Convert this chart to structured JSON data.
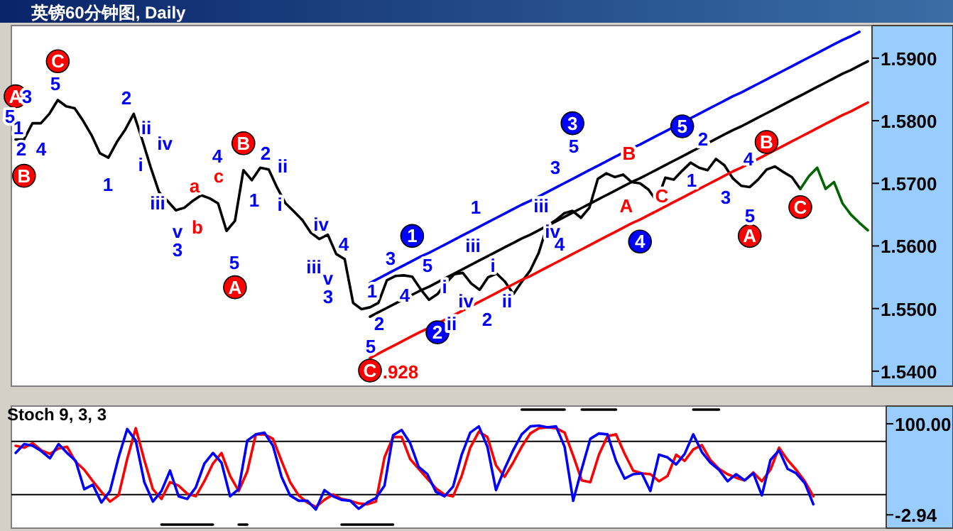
{
  "chart_data": [
    {
      "type": "line",
      "title": "英镑60分钟图, Daily",
      "ylim": [
        1.5376,
        1.5952
      ],
      "tick_labels": "y",
      "grid": false,
      "categories": [
        null,
        null,
        null,
        null,
        null,
        null,
        null,
        null,
        null,
        null,
        null,
        null,
        null,
        null,
        null,
        null,
        null,
        null,
        null,
        null,
        null,
        null,
        null,
        null,
        null,
        null,
        null,
        null,
        null,
        null,
        null,
        null,
        null,
        null,
        null,
        null,
        null,
        null,
        null,
        null,
        null,
        null,
        null,
        null,
        null,
        null,
        null,
        null,
        null,
        null,
        null,
        null,
        null,
        null,
        null,
        null,
        null,
        null,
        null,
        null,
        null,
        null,
        null,
        null,
        null,
        null,
        null,
        null,
        null,
        null,
        null,
        null,
        null,
        null,
        null,
        null,
        null,
        null,
        null,
        null,
        null,
        null,
        null,
        null,
        null,
        null,
        null,
        null,
        null,
        null,
        null,
        null,
        null,
        null,
        null,
        null,
        null,
        null,
        null,
        null,
        null,
        null
      ],
      "yticks": [
        {
          "value": 1.59,
          "label": "1.5900"
        },
        {
          "value": 1.58,
          "label": "1.5800"
        },
        {
          "value": 1.57,
          "label": "1.5700"
        },
        {
          "value": 1.56,
          "label": "1.5600"
        },
        {
          "value": 1.55,
          "label": "1.5500"
        },
        {
          "value": 1.54,
          "label": "1.5400"
        }
      ],
      "series": [
        {
          "color": "#000000",
          "values": [
            1.577,
            1.577,
            1.5796,
            1.5796,
            1.5811,
            1.5833,
            1.5823,
            1.582,
            1.58,
            1.5777,
            1.5748,
            1.5741,
            1.5766,
            1.5786,
            1.5811,
            1.577,
            1.5726,
            1.5686,
            1.5672,
            1.5657,
            1.5661,
            1.5672,
            1.5681,
            1.5676,
            1.5668,
            1.5624,
            1.564,
            1.5721,
            1.5705,
            1.5725,
            1.5722,
            1.5693,
            1.5668,
            1.5655,
            1.5641,
            1.5621,
            1.5611,
            1.5618,
            1.5587,
            1.5579,
            1.5509,
            1.5499,
            1.5502,
            1.5509,
            1.5545,
            1.5552,
            1.5553,
            1.5551,
            1.5531,
            1.5514,
            1.5523,
            1.5541,
            1.5555,
            1.5557,
            1.554,
            1.553,
            1.555,
            1.5556,
            1.5543,
            1.5523,
            1.5543,
            1.5561,
            1.5589,
            1.5632,
            1.5641,
            1.5652,
            1.5656,
            1.5645,
            1.5661,
            1.5707,
            1.5716,
            1.571,
            1.5714,
            1.5702,
            1.57,
            1.569,
            1.5671,
            1.5709,
            1.5706,
            1.572,
            1.5733,
            1.5725,
            1.5721,
            1.5739,
            1.5729,
            1.5708,
            1.5696,
            1.5694,
            1.5706,
            1.5722,
            1.5727,
            1.5718,
            1.571,
            1.5691,
            null,
            null,
            null,
            null,
            null,
            null,
            null,
            null
          ]
        },
        {
          "color": "#0000ff",
          "values": [
            null,
            null,
            null,
            null,
            null,
            null,
            null,
            null,
            null,
            null,
            null,
            null,
            null,
            null,
            null,
            null,
            null,
            null,
            null,
            null,
            null,
            null,
            null,
            null,
            null,
            null,
            null,
            null,
            null,
            null,
            null,
            null,
            null,
            null,
            null,
            null,
            null,
            null,
            null,
            null,
            null,
            null,
            1.5541,
            1.5548,
            1.5555,
            1.5562,
            1.5569,
            1.5576,
            1.5583,
            1.5589,
            1.5596,
            1.5603,
            1.561,
            1.5617,
            1.5624,
            1.5631,
            1.5638,
            1.5645,
            1.5652,
            1.5659,
            1.5666,
            1.5672,
            1.5679,
            1.5686,
            1.5693,
            1.57,
            1.5707,
            1.5714,
            1.5721,
            1.5728,
            1.5735,
            1.5742,
            1.5749,
            1.5756,
            1.5762,
            1.5769,
            1.5776,
            1.5783,
            1.579,
            1.5797,
            1.5804,
            1.5811,
            1.5818,
            1.5825,
            1.5832,
            1.5839,
            1.5845,
            1.5852,
            1.5859,
            1.5866,
            1.5873,
            1.588,
            1.5887,
            1.5894,
            1.5901,
            1.5908,
            1.5915,
            1.5922,
            1.5929,
            1.5935,
            1.5942,
            null
          ]
        },
        {
          "color": "#000000",
          "values": [
            null,
            null,
            null,
            null,
            null,
            null,
            null,
            null,
            null,
            null,
            null,
            null,
            null,
            null,
            null,
            null,
            null,
            null,
            null,
            null,
            null,
            null,
            null,
            null,
            null,
            null,
            null,
            null,
            null,
            null,
            null,
            null,
            null,
            null,
            null,
            null,
            null,
            null,
            null,
            null,
            null,
            null,
            1.5487,
            1.5494,
            1.5501,
            1.5508,
            1.5515,
            1.5522,
            1.5529,
            1.5535,
            1.5542,
            1.5549,
            1.5556,
            1.5563,
            1.557,
            1.5577,
            1.5584,
            1.5591,
            1.5598,
            1.5605,
            1.5612,
            1.5618,
            1.5625,
            1.5632,
            1.5639,
            1.5646,
            1.5653,
            1.566,
            1.5667,
            1.5674,
            1.5681,
            1.5688,
            1.5695,
            1.5702,
            1.5708,
            1.5715,
            1.5722,
            1.5729,
            1.5736,
            1.5743,
            1.575,
            1.5757,
            1.5764,
            1.5771,
            1.5778,
            1.5785,
            1.5791,
            1.5798,
            1.5805,
            1.5812,
            1.5819,
            1.5826,
            1.5833,
            1.584,
            1.5847,
            1.5854,
            1.5861,
            1.5868,
            1.5875,
            1.5881,
            1.5888,
            1.5895
          ]
        },
        {
          "color": "#ff0000",
          "values": [
            null,
            null,
            null,
            null,
            null,
            null,
            null,
            null,
            null,
            null,
            null,
            null,
            null,
            null,
            null,
            null,
            null,
            null,
            null,
            null,
            null,
            null,
            null,
            null,
            null,
            null,
            null,
            null,
            null,
            null,
            null,
            null,
            null,
            null,
            null,
            null,
            null,
            null,
            null,
            null,
            null,
            null,
            1.5421,
            1.5428,
            1.5435,
            1.5442,
            1.5449,
            1.5456,
            1.5463,
            1.5469,
            1.5476,
            1.5483,
            1.549,
            1.5497,
            1.5504,
            1.5511,
            1.5518,
            1.5525,
            1.5532,
            1.5539,
            1.5546,
            1.5552,
            1.5559,
            1.5566,
            1.5573,
            1.558,
            1.5587,
            1.5594,
            1.5601,
            1.5608,
            1.5615,
            1.5622,
            1.5629,
            1.5636,
            1.5642,
            1.5649,
            1.5656,
            1.5663,
            1.567,
            1.5677,
            1.5684,
            1.5691,
            1.5698,
            1.5705,
            1.5712,
            1.5719,
            1.5725,
            1.5732,
            1.5739,
            1.5746,
            1.5753,
            1.576,
            1.5767,
            1.5774,
            1.5781,
            1.5788,
            1.5795,
            1.5802,
            1.5809,
            1.5815,
            1.5822,
            1.5829
          ]
        },
        {
          "color": "#006400",
          "values": [
            null,
            null,
            null,
            null,
            null,
            null,
            null,
            null,
            null,
            null,
            null,
            null,
            null,
            null,
            null,
            null,
            null,
            null,
            null,
            null,
            null,
            null,
            null,
            null,
            null,
            null,
            null,
            null,
            null,
            null,
            null,
            null,
            null,
            null,
            null,
            null,
            null,
            null,
            null,
            null,
            null,
            null,
            null,
            null,
            null,
            null,
            null,
            null,
            null,
            null,
            null,
            null,
            null,
            null,
            null,
            null,
            null,
            null,
            null,
            null,
            null,
            null,
            null,
            null,
            null,
            null,
            null,
            null,
            null,
            null,
            null,
            null,
            null,
            null,
            null,
            null,
            null,
            null,
            null,
            null,
            null,
            null,
            null,
            null,
            null,
            null,
            null,
            null,
            null,
            null,
            null,
            null,
            null,
            1.5691,
            1.5711,
            1.5725,
            1.5691,
            1.5702,
            1.5668,
            1.565,
            1.5637,
            1.5625
          ]
        },
        {
          "type": "scatter",
          "marker": "circle",
          "color": "#ff0000",
          "values": [
            1.5839,
            1.5712,
            null,
            null,
            null,
            1.5895,
            null,
            null,
            null,
            null,
            null,
            null,
            null,
            null,
            null,
            null,
            null,
            null,
            null,
            null,
            null,
            null,
            null,
            null,
            null,
            null,
            1.5534,
            1.5764,
            null,
            null,
            null,
            null,
            null,
            null,
            null,
            null,
            null,
            null,
            null,
            null,
            null,
            null,
            1.5401,
            null,
            null,
            null,
            null,
            null,
            null,
            null,
            null,
            null,
            null,
            null,
            null,
            null,
            null,
            null,
            null,
            null,
            null,
            null,
            null,
            null,
            null,
            null,
            null,
            null,
            null,
            null,
            null,
            null,
            null,
            null,
            null,
            null,
            null,
            null,
            null,
            null,
            null,
            null,
            null,
            null,
            null,
            null,
            null,
            1.5616,
            null,
            1.5766,
            null,
            null,
            null,
            1.5662,
            null,
            null,
            null,
            null,
            null,
            null,
            null,
            null
          ]
        },
        {
          "type": "scatter",
          "marker": "circle",
          "color": "#0000ff",
          "values": [
            null,
            null,
            null,
            null,
            null,
            null,
            null,
            null,
            null,
            null,
            null,
            null,
            null,
            null,
            null,
            null,
            null,
            null,
            null,
            null,
            null,
            null,
            null,
            null,
            null,
            null,
            null,
            null,
            null,
            null,
            null,
            null,
            null,
            null,
            null,
            null,
            null,
            null,
            null,
            null,
            null,
            null,
            null,
            null,
            null,
            null,
            null,
            1.5616,
            null,
            null,
            1.5462,
            null,
            null,
            null,
            null,
            null,
            null,
            null,
            null,
            null,
            null,
            null,
            null,
            null,
            null,
            null,
            1.5796,
            null,
            null,
            null,
            null,
            null,
            null,
            null,
            1.5607,
            null,
            null,
            null,
            null,
            1.5791,
            null,
            null,
            null,
            null,
            null,
            null,
            null,
            null,
            null,
            null,
            null,
            null,
            null,
            null,
            null,
            null,
            null,
            null,
            null,
            null,
            null,
            null
          ]
        }
      ],
      "annotations": [
        "5",
        "3",
        "4",
        "5",
        "1",
        "2",
        "ii",
        "iii",
        "iv",
        "v",
        "4",
        "5",
        "1",
        "2",
        "i",
        "ii",
        "iii",
        "iv",
        "v",
        "4",
        "1",
        "2",
        "3",
        "4",
        "5",
        "i",
        "ii",
        "iii",
        "iv",
        "2",
        "i",
        "ii",
        "iii",
        "3",
        "5",
        "1",
        "2",
        "3",
        "4",
        "1",
        "2",
        "i",
        "3",
        "3",
        "5",
        "1",
        "iv",
        "5",
        "4",
        "a",
        "b",
        "c",
        ".928",
        "A",
        "B",
        "C",
        "A",
        "B",
        "C",
        "A",
        "B",
        "C",
        "A",
        "B",
        "C",
        "1",
        "2",
        "3",
        "4",
        "5"
      ]
    },
    {
      "type": "line",
      "title": "Stoch 9, 3, 3",
      "ylim": [
        -18,
        120
      ],
      "tick_labels": "y",
      "grid": false,
      "categories": [
        null,
        null,
        null,
        null,
        null,
        null,
        null,
        null,
        null,
        null,
        null,
        null,
        null,
        null,
        null,
        null,
        null,
        null,
        null,
        null,
        null,
        null,
        null,
        null,
        null,
        null,
        null,
        null,
        null,
        null,
        null,
        null,
        null,
        null,
        null,
        null,
        null,
        null,
        null,
        null,
        null,
        null,
        null,
        null,
        null,
        null,
        null,
        null,
        null,
        null,
        null,
        null,
        null,
        null,
        null,
        null,
        null,
        null,
        null,
        null,
        null,
        null,
        null,
        null,
        null,
        null,
        null,
        null,
        null,
        null,
        null,
        null,
        null,
        null,
        null,
        null,
        null,
        null,
        null,
        null,
        null,
        null,
        null,
        null,
        null,
        null,
        null,
        null,
        null,
        null,
        null,
        null,
        null,
        null,
        null,
        null,
        null,
        null,
        null,
        null,
        null,
        null
      ],
      "yticks": [
        {
          "value": 100,
          "label": "100.00"
        },
        {
          "value": -2.94,
          "label": "-2.94"
        }
      ],
      "ref_lines": [
        {
          "axis": "y",
          "value": 80,
          "label": null,
          "color": "#000000"
        },
        {
          "axis": "y",
          "value": 20,
          "label": null,
          "color": "#000000"
        }
      ],
      "series": [
        {
          "color": "#000000",
          "values": [
            null,
            null,
            null,
            null,
            null,
            null,
            null,
            null,
            null,
            null,
            null,
            null,
            null,
            null,
            null,
            null,
            null,
            null,
            null,
            null,
            null,
            null,
            null,
            null,
            null,
            null,
            null,
            null,
            null,
            null,
            null,
            null,
            null,
            null,
            null,
            null,
            null,
            null,
            null,
            null,
            null,
            null,
            null,
            null,
            null,
            null,
            null,
            null,
            null,
            null,
            null,
            null,
            null,
            null,
            null,
            null,
            null,
            null,
            null,
            116,
            116,
            116,
            116,
            116,
            116,
            null,
            116,
            116,
            116,
            116,
            116,
            null,
            null,
            null,
            null,
            null,
            null,
            null,
            null,
            116,
            116,
            116,
            116,
            null,
            null,
            null,
            null,
            null,
            null,
            null,
            null,
            null,
            null,
            null,
            null,
            null,
            null,
            null,
            null,
            null,
            null,
            null
          ]
        },
        {
          "color": "#000000",
          "values": [
            null,
            null,
            null,
            null,
            null,
            null,
            null,
            null,
            null,
            null,
            null,
            null,
            null,
            null,
            null,
            null,
            null,
            -14,
            -14,
            -14,
            -14,
            -14,
            -14,
            -14,
            null,
            null,
            -14,
            -14,
            null,
            null,
            null,
            null,
            null,
            null,
            null,
            null,
            null,
            null,
            -14,
            -14,
            -14,
            -14,
            -14,
            -14,
            -14,
            null,
            null,
            null,
            null,
            null,
            null,
            null,
            null,
            null,
            null,
            null,
            null,
            null,
            null,
            null,
            null,
            null,
            null,
            null,
            null,
            null,
            null,
            null,
            null,
            null,
            null,
            null,
            null,
            null,
            null,
            null,
            null,
            null,
            null,
            null,
            null,
            null,
            null,
            null,
            null,
            null,
            null,
            null,
            null,
            null,
            null,
            null,
            null,
            null,
            null,
            null,
            null,
            null,
            null,
            null,
            null,
            null
          ]
        },
        {
          "color": "#ff0000",
          "values": [
            75,
            73,
            78,
            70,
            66,
            72,
            74,
            57,
            48,
            35,
            23,
            12,
            19,
            60,
            95,
            59,
            26,
            15,
            34,
            30,
            21,
            18,
            35,
            55,
            67,
            41,
            24,
            46,
            88,
            88,
            83,
            58,
            34,
            19,
            11,
            6,
            14,
            20,
            15,
            13,
            10,
            9,
            12,
            62,
            85,
            85,
            60,
            49,
            38,
            27,
            20,
            18,
            41,
            73,
            91,
            85,
            53,
            40,
            56,
            74,
            89,
            95,
            96,
            95,
            90,
            64,
            36,
            34,
            65,
            86,
            88,
            66,
            47,
            44,
            43,
            35,
            41,
            65,
            58,
            71,
            76,
            59,
            49,
            43,
            39,
            36,
            45,
            35,
            48,
            73,
            59,
            48,
            35,
            18,
            null,
            null,
            null,
            null,
            null,
            null,
            null,
            null
          ]
        },
        {
          "color": "#0000ff",
          "values": [
            67,
            77,
            75,
            69,
            61,
            77,
            67,
            58,
            26,
            31,
            11,
            24,
            62,
            94,
            81,
            34,
            12,
            24,
            47,
            18,
            15,
            28,
            55,
            67,
            56,
            18,
            26,
            81,
            88,
            90,
            75,
            40,
            19,
            13,
            13,
            3,
            25,
            18,
            14,
            13,
            4,
            11,
            16,
            30,
            87,
            93,
            78,
            51,
            43,
            23,
            18,
            29,
            65,
            90,
            97,
            74,
            25,
            49,
            70,
            88,
            97,
            98,
            96,
            97,
            74,
            13,
            49,
            83,
            89,
            88,
            58,
            38,
            43,
            44,
            24,
            65,
            62,
            54,
            66,
            88,
            68,
            56,
            48,
            35,
            43,
            36,
            44,
            19,
            59,
            70,
            49,
            44,
            33,
            9,
            null,
            null,
            null,
            null,
            null,
            null,
            null,
            null
          ]
        }
      ]
    }
  ]
}
